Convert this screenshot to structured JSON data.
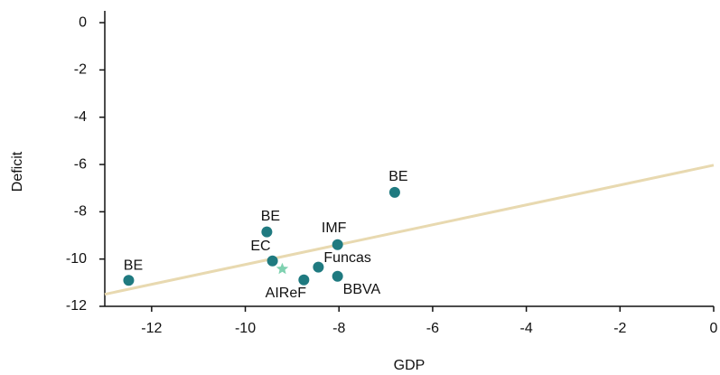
{
  "chart_data": {
    "type": "scatter",
    "x_label": "GDP",
    "y_label": "Deficit",
    "xlim": [
      -13,
      0
    ],
    "ylim": [
      -12,
      0.5
    ],
    "xticks": [
      -12,
      -10,
      -8,
      -6,
      -4,
      -2,
      0
    ],
    "yticks": [
      0,
      -2,
      -4,
      -6,
      -8,
      -10,
      -12
    ],
    "color": "#1f7a80",
    "points": [
      {
        "label": "BE",
        "x": -12.49,
        "y": -10.9,
        "marker": "circle"
      },
      {
        "label": "BE",
        "x": -6.81,
        "y": -7.18,
        "marker": "circle"
      },
      {
        "label": "BE",
        "x": -9.54,
        "y": -8.85,
        "marker": "circle"
      },
      {
        "label": "IMF",
        "x": -8.03,
        "y": -9.39,
        "marker": "circle"
      },
      {
        "label": "EC",
        "x": -9.42,
        "y": -10.08,
        "marker": "circle"
      },
      {
        "label": "Funcas",
        "x": -8.44,
        "y": -10.34,
        "marker": "circle"
      },
      {
        "label": "BBVA",
        "x": -8.03,
        "y": -10.73,
        "marker": "circle"
      },
      {
        "label": "AIReF",
        "x": -8.75,
        "y": -10.88,
        "marker": "circle"
      },
      {
        "label": null,
        "x": -9.21,
        "y": -10.42,
        "marker": "star",
        "color": "#7fd1b0"
      }
    ],
    "trendline": {
      "x": [
        -13,
        0
      ],
      "y": [
        -11.49,
        -6.03
      ],
      "color": "#e8d9b0"
    }
  }
}
